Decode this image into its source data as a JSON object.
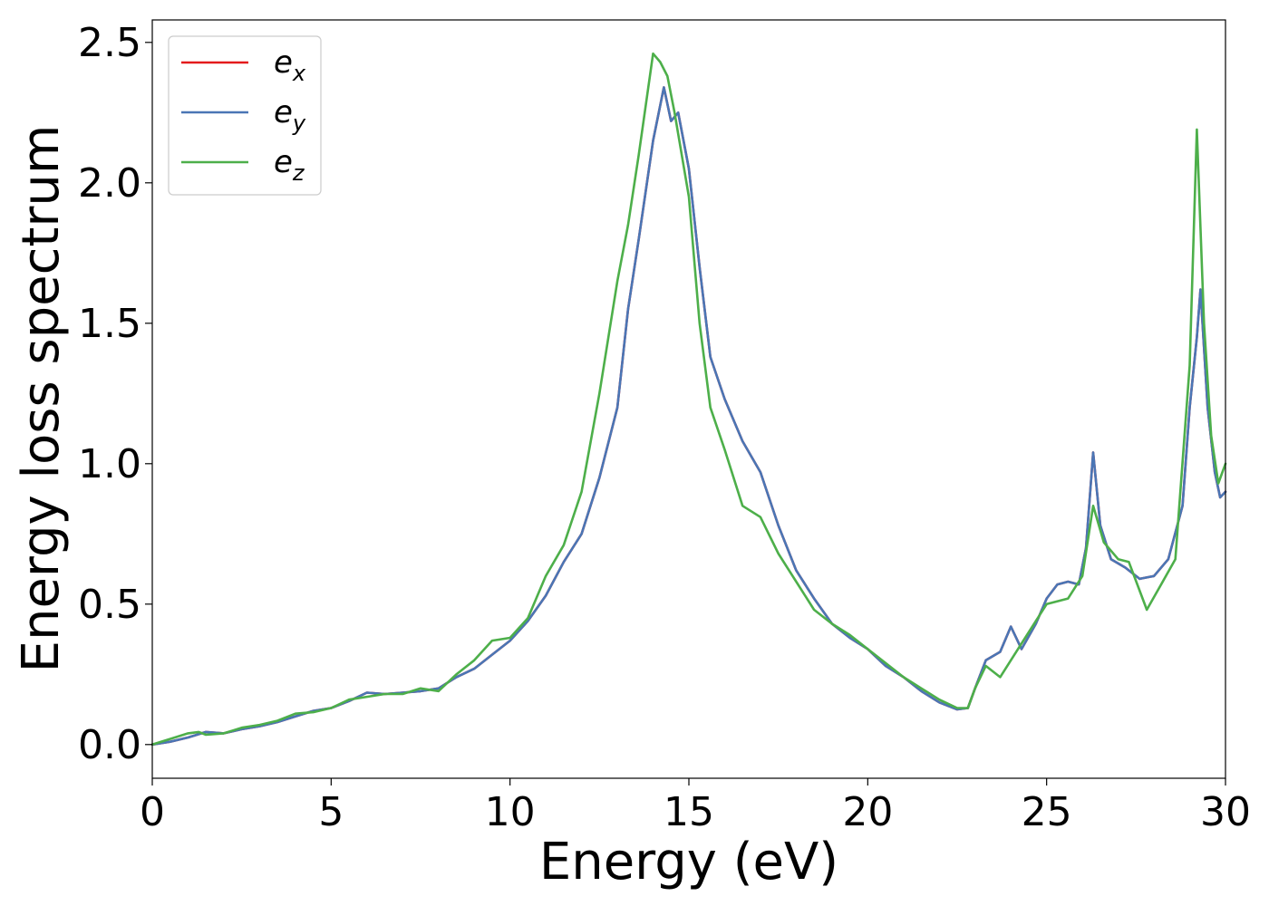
{
  "chart_data": {
    "type": "line",
    "title": "",
    "xlabel": "Energy (eV)",
    "ylabel": "Energy loss spectrum",
    "xlim": [
      0,
      30
    ],
    "ylim": [
      -0.12,
      2.58
    ],
    "xticks": [
      0,
      5,
      10,
      15,
      20,
      25,
      30
    ],
    "xtick_labels": [
      "0",
      "5",
      "10",
      "15",
      "20",
      "25",
      "30"
    ],
    "yticks": [
      0.0,
      0.5,
      1.0,
      1.5,
      2.0,
      2.5
    ],
    "ytick_labels": [
      "0.0",
      "0.5",
      "1.0",
      "1.5",
      "2.0",
      "2.5"
    ],
    "grid": false,
    "legend_position": "top-left",
    "series": [
      {
        "name": "e_x",
        "legend_base": "e",
        "legend_sub": "x",
        "color": "#e41a1c",
        "points": [
          [
            0,
            0
          ],
          [
            0.5,
            0.01
          ],
          [
            1.0,
            0.025
          ],
          [
            1.5,
            0.045
          ],
          [
            2.0,
            0.04
          ],
          [
            2.5,
            0.055
          ],
          [
            3.0,
            0.065
          ],
          [
            3.5,
            0.08
          ],
          [
            4.0,
            0.1
          ],
          [
            4.5,
            0.12
          ],
          [
            5.0,
            0.13
          ],
          [
            5.5,
            0.155
          ],
          [
            6.0,
            0.185
          ],
          [
            6.5,
            0.18
          ],
          [
            7.0,
            0.185
          ],
          [
            7.5,
            0.19
          ],
          [
            8.0,
            0.2
          ],
          [
            8.5,
            0.24
          ],
          [
            9.0,
            0.27
          ],
          [
            9.5,
            0.32
          ],
          [
            10.0,
            0.37
          ],
          [
            10.5,
            0.44
          ],
          [
            11.0,
            0.53
          ],
          [
            11.5,
            0.65
          ],
          [
            12.0,
            0.75
          ],
          [
            12.5,
            0.95
          ],
          [
            13.0,
            1.2
          ],
          [
            13.3,
            1.55
          ],
          [
            13.6,
            1.8
          ],
          [
            14.0,
            2.15
          ],
          [
            14.3,
            2.34
          ],
          [
            14.5,
            2.22
          ],
          [
            14.7,
            2.25
          ],
          [
            15.0,
            2.05
          ],
          [
            15.3,
            1.7
          ],
          [
            15.6,
            1.38
          ],
          [
            16.0,
            1.23
          ],
          [
            16.5,
            1.08
          ],
          [
            17.0,
            0.97
          ],
          [
            17.5,
            0.78
          ],
          [
            18.0,
            0.62
          ],
          [
            18.5,
            0.52
          ],
          [
            19.0,
            0.43
          ],
          [
            19.5,
            0.38
          ],
          [
            20.0,
            0.34
          ],
          [
            20.5,
            0.28
          ],
          [
            21.0,
            0.24
          ],
          [
            21.5,
            0.19
          ],
          [
            22.0,
            0.15
          ],
          [
            22.5,
            0.125
          ],
          [
            22.8,
            0.13
          ],
          [
            23.0,
            0.2
          ],
          [
            23.3,
            0.3
          ],
          [
            23.7,
            0.33
          ],
          [
            24.0,
            0.42
          ],
          [
            24.3,
            0.34
          ],
          [
            24.7,
            0.43
          ],
          [
            25.0,
            0.52
          ],
          [
            25.3,
            0.57
          ],
          [
            25.6,
            0.58
          ],
          [
            25.9,
            0.57
          ],
          [
            26.1,
            0.7
          ],
          [
            26.3,
            1.04
          ],
          [
            26.5,
            0.78
          ],
          [
            26.8,
            0.66
          ],
          [
            27.2,
            0.63
          ],
          [
            27.6,
            0.59
          ],
          [
            28.0,
            0.6
          ],
          [
            28.4,
            0.66
          ],
          [
            28.8,
            0.85
          ],
          [
            29.0,
            1.2
          ],
          [
            29.2,
            1.45
          ],
          [
            29.3,
            1.62
          ],
          [
            29.5,
            1.2
          ],
          [
            29.7,
            0.97
          ],
          [
            29.85,
            0.88
          ],
          [
            30.0,
            0.9
          ]
        ]
      },
      {
        "name": "e_y",
        "legend_base": "e",
        "legend_sub": "y",
        "color": "#4a76b5",
        "points": [
          [
            0,
            0
          ],
          [
            0.5,
            0.01
          ],
          [
            1.0,
            0.025
          ],
          [
            1.5,
            0.045
          ],
          [
            2.0,
            0.04
          ],
          [
            2.5,
            0.055
          ],
          [
            3.0,
            0.065
          ],
          [
            3.5,
            0.08
          ],
          [
            4.0,
            0.1
          ],
          [
            4.5,
            0.12
          ],
          [
            5.0,
            0.13
          ],
          [
            5.5,
            0.155
          ],
          [
            6.0,
            0.185
          ],
          [
            6.5,
            0.18
          ],
          [
            7.0,
            0.185
          ],
          [
            7.5,
            0.19
          ],
          [
            8.0,
            0.2
          ],
          [
            8.5,
            0.24
          ],
          [
            9.0,
            0.27
          ],
          [
            9.5,
            0.32
          ],
          [
            10.0,
            0.37
          ],
          [
            10.5,
            0.44
          ],
          [
            11.0,
            0.53
          ],
          [
            11.5,
            0.65
          ],
          [
            12.0,
            0.75
          ],
          [
            12.5,
            0.95
          ],
          [
            13.0,
            1.2
          ],
          [
            13.3,
            1.55
          ],
          [
            13.6,
            1.8
          ],
          [
            14.0,
            2.15
          ],
          [
            14.3,
            2.34
          ],
          [
            14.5,
            2.22
          ],
          [
            14.7,
            2.25
          ],
          [
            15.0,
            2.05
          ],
          [
            15.3,
            1.7
          ],
          [
            15.6,
            1.38
          ],
          [
            16.0,
            1.23
          ],
          [
            16.5,
            1.08
          ],
          [
            17.0,
            0.97
          ],
          [
            17.5,
            0.78
          ],
          [
            18.0,
            0.62
          ],
          [
            18.5,
            0.52
          ],
          [
            19.0,
            0.43
          ],
          [
            19.5,
            0.38
          ],
          [
            20.0,
            0.34
          ],
          [
            20.5,
            0.28
          ],
          [
            21.0,
            0.24
          ],
          [
            21.5,
            0.19
          ],
          [
            22.0,
            0.15
          ],
          [
            22.5,
            0.125
          ],
          [
            22.8,
            0.13
          ],
          [
            23.0,
            0.2
          ],
          [
            23.3,
            0.3
          ],
          [
            23.7,
            0.33
          ],
          [
            24.0,
            0.42
          ],
          [
            24.3,
            0.34
          ],
          [
            24.7,
            0.43
          ],
          [
            25.0,
            0.52
          ],
          [
            25.3,
            0.57
          ],
          [
            25.6,
            0.58
          ],
          [
            25.9,
            0.57
          ],
          [
            26.1,
            0.7
          ],
          [
            26.3,
            1.04
          ],
          [
            26.5,
            0.78
          ],
          [
            26.8,
            0.66
          ],
          [
            27.2,
            0.63
          ],
          [
            27.6,
            0.59
          ],
          [
            28.0,
            0.6
          ],
          [
            28.4,
            0.66
          ],
          [
            28.8,
            0.85
          ],
          [
            29.0,
            1.2
          ],
          [
            29.2,
            1.45
          ],
          [
            29.3,
            1.62
          ],
          [
            29.5,
            1.2
          ],
          [
            29.7,
            0.97
          ],
          [
            29.85,
            0.88
          ],
          [
            30.0,
            0.9
          ]
        ]
      },
      {
        "name": "e_z",
        "legend_base": "e",
        "legend_sub": "z",
        "color": "#4daf4a",
        "points": [
          [
            0,
            0
          ],
          [
            0.5,
            0.02
          ],
          [
            1.0,
            0.04
          ],
          [
            1.3,
            0.045
          ],
          [
            1.5,
            0.035
          ],
          [
            2.0,
            0.04
          ],
          [
            2.5,
            0.06
          ],
          [
            3.0,
            0.07
          ],
          [
            3.5,
            0.085
          ],
          [
            4.0,
            0.11
          ],
          [
            4.5,
            0.115
          ],
          [
            5.0,
            0.13
          ],
          [
            5.5,
            0.16
          ],
          [
            6.0,
            0.17
          ],
          [
            6.5,
            0.18
          ],
          [
            7.0,
            0.18
          ],
          [
            7.5,
            0.2
          ],
          [
            8.0,
            0.19
          ],
          [
            8.5,
            0.25
          ],
          [
            9.0,
            0.3
          ],
          [
            9.5,
            0.37
          ],
          [
            10.0,
            0.38
          ],
          [
            10.5,
            0.45
          ],
          [
            11.0,
            0.6
          ],
          [
            11.5,
            0.71
          ],
          [
            12.0,
            0.9
          ],
          [
            12.5,
            1.25
          ],
          [
            13.0,
            1.65
          ],
          [
            13.3,
            1.85
          ],
          [
            13.6,
            2.1
          ],
          [
            14.0,
            2.46
          ],
          [
            14.2,
            2.43
          ],
          [
            14.4,
            2.38
          ],
          [
            14.6,
            2.25
          ],
          [
            15.0,
            1.95
          ],
          [
            15.3,
            1.5
          ],
          [
            15.6,
            1.2
          ],
          [
            16.0,
            1.05
          ],
          [
            16.5,
            0.85
          ],
          [
            17.0,
            0.81
          ],
          [
            17.5,
            0.68
          ],
          [
            18.0,
            0.58
          ],
          [
            18.5,
            0.48
          ],
          [
            19.0,
            0.43
          ],
          [
            19.5,
            0.39
          ],
          [
            20.0,
            0.34
          ],
          [
            20.5,
            0.29
          ],
          [
            21.0,
            0.24
          ],
          [
            21.5,
            0.2
          ],
          [
            22.0,
            0.16
          ],
          [
            22.5,
            0.13
          ],
          [
            22.8,
            0.13
          ],
          [
            23.0,
            0.2
          ],
          [
            23.3,
            0.28
          ],
          [
            23.7,
            0.24
          ],
          [
            24.0,
            0.3
          ],
          [
            24.5,
            0.4
          ],
          [
            25.0,
            0.5
          ],
          [
            25.6,
            0.52
          ],
          [
            26.0,
            0.6
          ],
          [
            26.3,
            0.85
          ],
          [
            26.6,
            0.72
          ],
          [
            27.0,
            0.66
          ],
          [
            27.3,
            0.65
          ],
          [
            27.8,
            0.48
          ],
          [
            28.2,
            0.57
          ],
          [
            28.6,
            0.66
          ],
          [
            29.0,
            1.35
          ],
          [
            29.2,
            2.19
          ],
          [
            29.4,
            1.5
          ],
          [
            29.6,
            1.1
          ],
          [
            29.8,
            0.93
          ],
          [
            30.0,
            1.0
          ]
        ]
      }
    ]
  }
}
